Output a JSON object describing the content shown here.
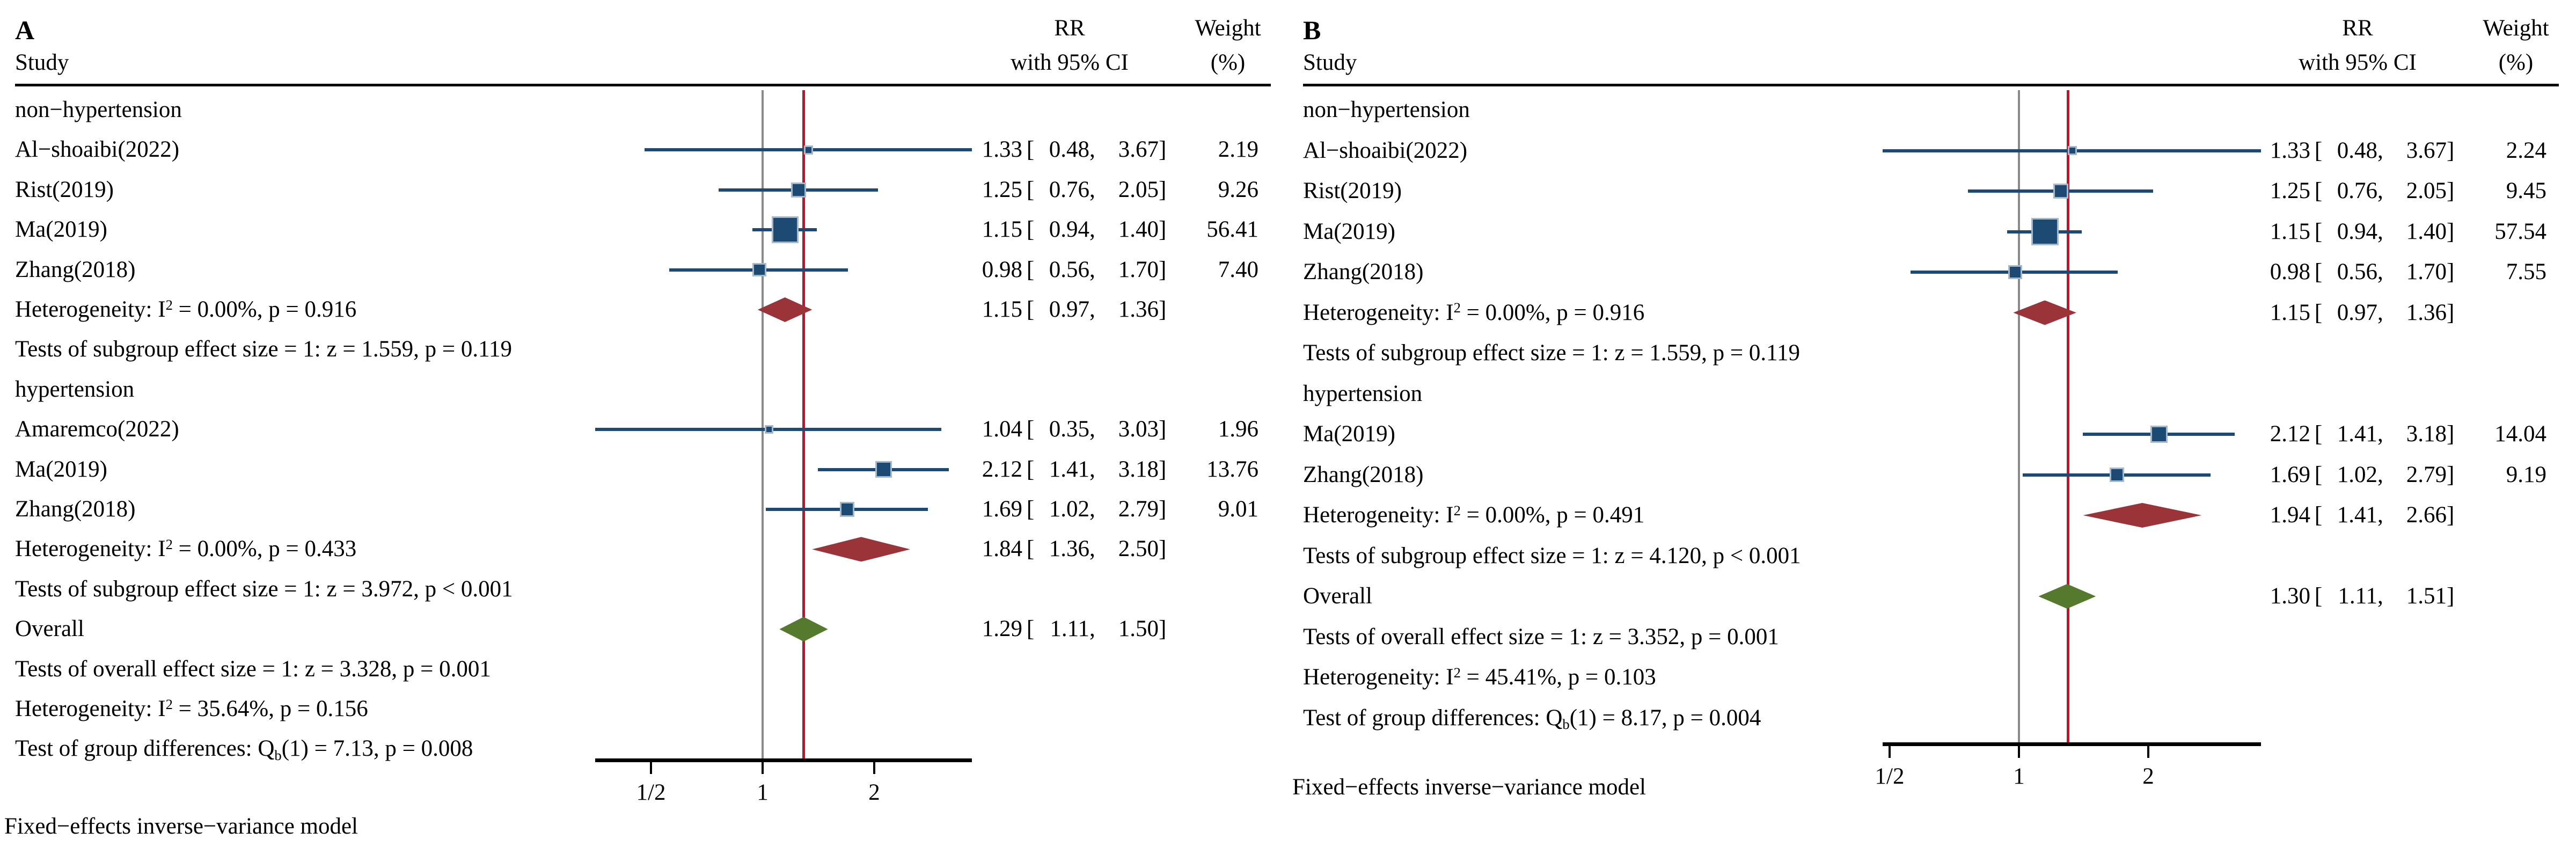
{
  "figure_colors": {
    "marker_navy": "#1C4A72",
    "marker_border": "#A5B9CB",
    "subgroup_maroon": "#9A3439",
    "overall_green": "#567A2D",
    "overall_line_red": "#C8102E",
    "reference_line_gray": "#8A8A8A",
    "axis_black": "#000000"
  },
  "punctuation": {
    "bracket_open": "[",
    "bracket_close": "]",
    "comma": ","
  },
  "chart_data": [
    {
      "type": "forest",
      "panel_letter": "A",
      "xscale": "log2",
      "column_headers": {
        "study": "Study",
        "rr_line1": "RR",
        "rr_line2": "with 95% CI",
        "weight_line1": "Weight",
        "weight_line2": "(%)"
      },
      "x_ticks": [
        {
          "value": 0.5,
          "label": "1/2"
        },
        {
          "value": 1,
          "label": "1"
        },
        {
          "value": 2,
          "label": "2"
        }
      ],
      "x_range": [
        0.354,
        3.67
      ],
      "reference_line": 1,
      "overall_line": 1.29,
      "legend_position": "none",
      "grid": false,
      "rows": [
        {
          "kind": "group",
          "label": "non−hypertension"
        },
        {
          "kind": "study",
          "label": "Al−shoaibi(2022)",
          "est": "1.33",
          "lo": "0.48",
          "hi": "3.67",
          "weight": "2.19"
        },
        {
          "kind": "study",
          "label": "Rist(2019)",
          "est": "1.25",
          "lo": "0.76",
          "hi": "2.05",
          "weight": "9.26"
        },
        {
          "kind": "study",
          "label": "Ma(2019)",
          "est": "1.15",
          "lo": "0.94",
          "hi": "1.40",
          "weight": "56.41"
        },
        {
          "kind": "study",
          "label": "Zhang(2018)",
          "est": "0.98",
          "lo": "0.56",
          "hi": "1.70",
          "weight": "7.40"
        },
        {
          "kind": "summary",
          "diamond": "maroon",
          "parts": [
            {
              "t": "Heterogeneity: I"
            },
            {
              "t": "2",
              "sup": true
            },
            {
              "t": " = 0.00%, p = 0.916"
            }
          ],
          "est": "1.15",
          "lo": "0.97",
          "hi": "1.36"
        },
        {
          "kind": "stats",
          "parts": [
            {
              "t": "Tests of subgroup effect size = 1: z = 1.559, p = 0.119"
            }
          ]
        },
        {
          "kind": "group",
          "label": "hypertension"
        },
        {
          "kind": "study",
          "label": "Amaremco(2022)",
          "est": "1.04",
          "lo": "0.35",
          "hi": "3.03",
          "weight": "1.96"
        },
        {
          "kind": "study",
          "label": "Ma(2019)",
          "est": "2.12",
          "lo": "1.41",
          "hi": "3.18",
          "weight": "13.76"
        },
        {
          "kind": "study",
          "label": "Zhang(2018)",
          "est": "1.69",
          "lo": "1.02",
          "hi": "2.79",
          "weight": "9.01"
        },
        {
          "kind": "summary",
          "diamond": "maroon",
          "parts": [
            {
              "t": "Heterogeneity: I"
            },
            {
              "t": "2",
              "sup": true
            },
            {
              "t": " = 0.00%, p = 0.433"
            }
          ],
          "est": "1.84",
          "lo": "1.36",
          "hi": "2.50"
        },
        {
          "kind": "stats",
          "parts": [
            {
              "t": "Tests of subgroup effect size = 1: z = 3.972, p < 0.001"
            }
          ]
        },
        {
          "kind": "summary",
          "diamond": "green",
          "parts": [
            {
              "t": "Overall"
            }
          ],
          "est": "1.29",
          "lo": "1.11",
          "hi": "1.50"
        },
        {
          "kind": "stats",
          "parts": [
            {
              "t": "Tests of overall effect size = 1: z = 3.328, p = 0.001"
            }
          ]
        },
        {
          "kind": "stats",
          "parts": [
            {
              "t": "Heterogeneity: I"
            },
            {
              "t": "2",
              "sup": true
            },
            {
              "t": " = 35.64%, p = 0.156"
            }
          ]
        },
        {
          "kind": "stats",
          "parts": [
            {
              "t": "Test of group differences: Q"
            },
            {
              "t": "b",
              "sub": true
            },
            {
              "t": "(1) = 7.13, p = 0.008"
            }
          ]
        }
      ],
      "footnote": "Fixed−effects inverse−variance model"
    },
    {
      "type": "forest",
      "panel_letter": "B",
      "xscale": "log2",
      "column_headers": {
        "study": "Study",
        "rr_line1": "RR",
        "rr_line2": "with 95% CI",
        "weight_line1": "Weight",
        "weight_line2": "(%)"
      },
      "x_ticks": [
        {
          "value": 0.5,
          "label": "1/2"
        },
        {
          "value": 1,
          "label": "1"
        },
        {
          "value": 2,
          "label": "2"
        }
      ],
      "x_range": [
        0.49,
        3.67
      ],
      "reference_line": 1,
      "overall_line": 1.3,
      "legend_position": "none",
      "grid": false,
      "rows": [
        {
          "kind": "group",
          "label": "non−hypertension"
        },
        {
          "kind": "study",
          "label": "Al−shoaibi(2022)",
          "est": "1.33",
          "lo": "0.48",
          "hi": "3.67",
          "weight": "2.24"
        },
        {
          "kind": "study",
          "label": "Rist(2019)",
          "est": "1.25",
          "lo": "0.76",
          "hi": "2.05",
          "weight": "9.45"
        },
        {
          "kind": "study",
          "label": "Ma(2019)",
          "est": "1.15",
          "lo": "0.94",
          "hi": "1.40",
          "weight": "57.54"
        },
        {
          "kind": "study",
          "label": "Zhang(2018)",
          "est": "0.98",
          "lo": "0.56",
          "hi": "1.70",
          "weight": "7.55"
        },
        {
          "kind": "summary",
          "diamond": "maroon",
          "parts": [
            {
              "t": "Heterogeneity: I"
            },
            {
              "t": "2",
              "sup": true
            },
            {
              "t": " = 0.00%, p = 0.916"
            }
          ],
          "est": "1.15",
          "lo": "0.97",
          "hi": "1.36"
        },
        {
          "kind": "stats",
          "parts": [
            {
              "t": "Tests of subgroup effect size = 1: z = 1.559, p = 0.119"
            }
          ]
        },
        {
          "kind": "group",
          "label": "hypertension"
        },
        {
          "kind": "study",
          "label": "Ma(2019)",
          "est": "2.12",
          "lo": "1.41",
          "hi": "3.18",
          "weight": "14.04"
        },
        {
          "kind": "study",
          "label": "Zhang(2018)",
          "est": "1.69",
          "lo": "1.02",
          "hi": "2.79",
          "weight": "9.19"
        },
        {
          "kind": "summary",
          "diamond": "maroon",
          "parts": [
            {
              "t": "Heterogeneity: I"
            },
            {
              "t": "2",
              "sup": true
            },
            {
              "t": " = 0.00%, p = 0.491"
            }
          ],
          "est": "1.94",
          "lo": "1.41",
          "hi": "2.66"
        },
        {
          "kind": "stats",
          "parts": [
            {
              "t": "Tests of subgroup effect size = 1: z = 4.120, p < 0.001"
            }
          ]
        },
        {
          "kind": "summary",
          "diamond": "green",
          "parts": [
            {
              "t": "Overall"
            }
          ],
          "est": "1.30",
          "lo": "1.11",
          "hi": "1.51"
        },
        {
          "kind": "stats",
          "parts": [
            {
              "t": "Tests of overall effect size = 1: z = 3.352, p = 0.001"
            }
          ]
        },
        {
          "kind": "stats",
          "parts": [
            {
              "t": "Heterogeneity: I"
            },
            {
              "t": "2",
              "sup": true
            },
            {
              "t": " = 45.41%, p = 0.103"
            }
          ]
        },
        {
          "kind": "stats",
          "parts": [
            {
              "t": "Test of group differences: Q"
            },
            {
              "t": "b",
              "sub": true
            },
            {
              "t": "(1) = 8.17, p = 0.004"
            }
          ]
        }
      ],
      "footnote": "Fixed−effects inverse−variance model"
    }
  ]
}
